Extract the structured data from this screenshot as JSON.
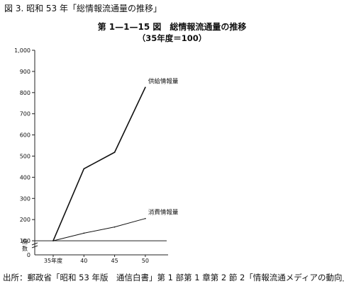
{
  "figure_caption": "図 3. 昭和 53 年「総情報流通量の推移」",
  "source_note": "出所：郵政省「昭和 53 年版　通信白書」第 1 部第 1 章第 2 節 2「情報流通メディアの動向」",
  "chart_data": {
    "type": "line",
    "title": "第 1—1—15 図　総情報流通量の推移",
    "subtitle": "（35年度＝100）",
    "ylabel": "指数",
    "xlabel": "",
    "x": [
      35,
      40,
      45,
      50
    ],
    "x_tick_labels": [
      "35年度",
      "40",
      "45",
      "50"
    ],
    "ylim": [
      0,
      1000
    ],
    "y_ticks": [
      0,
      100,
      200,
      300,
      400,
      500,
      600,
      700,
      800,
      900,
      1000
    ],
    "y_tick_labels": [
      "0",
      "100",
      "200",
      "300",
      "400",
      "500",
      "600",
      "700",
      "800",
      "900",
      "1,000"
    ],
    "baseline": 100,
    "grid": false,
    "series": [
      {
        "name": "供給情報量",
        "values": [
          100,
          440,
          518,
          825
        ]
      },
      {
        "name": "消費情報量",
        "values": [
          100,
          136,
          165,
          205
        ]
      }
    ]
  }
}
